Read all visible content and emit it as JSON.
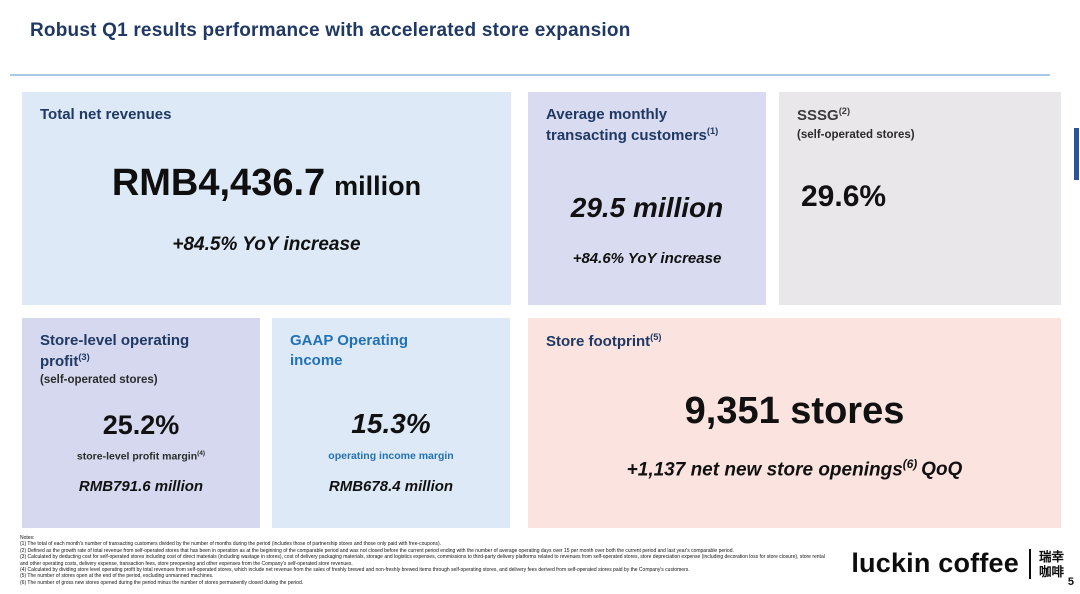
{
  "slide": {
    "title": "Robust Q1 results performance with accelerated store expansion",
    "page_number": "5"
  },
  "colors": {
    "title_navy": "#1F3864",
    "card_light_blue": "#DDE9F6",
    "card_lavender": "#D9DBF0",
    "card_gray": "#E9E7EA",
    "card_pink": "#FBE3DF",
    "accent_blue": "#2271B5"
  },
  "cards": {
    "net_revenues": {
      "heading": "Total net revenues",
      "value": "RMB4,436.7",
      "unit": "million",
      "change": "+84.5% YoY increase"
    },
    "monthly_customers": {
      "heading_line1": "Average monthly",
      "heading_line2": "transacting customers",
      "heading_sup": "(1)",
      "value": "29.5 million",
      "change": "+84.6% YoY increase"
    },
    "sssg": {
      "heading": "SSSG",
      "heading_sup": "(2)",
      "subheading": "(self-operated stores)",
      "value": "29.6%"
    },
    "store_profit": {
      "heading_line1": "Store-level operating",
      "heading_line2": "profit",
      "heading_sup": "(3)",
      "subheading": "(self-operated stores)",
      "value": "25.2%",
      "margin_label": "store-level profit margin",
      "margin_sup": "(4)",
      "amount": "RMB791.6 million"
    },
    "gaap_income": {
      "heading_line1": "GAAP Operating",
      "heading_line2": "income",
      "value": "15.3%",
      "margin_label": "operating income margin",
      "amount": "RMB678.4 million"
    },
    "store_footprint": {
      "heading": "Store footprint",
      "heading_sup": "(5)",
      "value": "9,351 stores",
      "change_prefix": "+1,137 net new store openings",
      "change_sup": "(6)",
      "change_suffix": "QoQ"
    }
  },
  "notes": {
    "label": "Notes:",
    "items": [
      "(1) The total of each month's number of transacting customers divided by the number of months during the period (includes those of partnership stores and those only paid with free-coupons).",
      "(2) Defined as the growth rate of total revenue from self-operated stores that has been in operation as at the beginning of the comparable period and was not closed before the current period ending with the number of average operating days over 15 per month over both the current period and last year's comparable period.",
      "(3) Calculated by deducting cost for self-operated stores including cost of direct materials (including wastage in stores), cost of delivery packaging materials, storage and logistics expenses, commissions to third-party delivery platforms related to revenues from self-operated stores, store depreciation expense (including decoration loss for store closure), store rental and other operating costs, delivery expense, transaction fees, store preopening and other expenses from the Company's self-operated store revenues.",
      "(4) Calculated by dividing store level operating profit by total revenues from self-operated stores, which include net revenue from the sales of freshly brewed and non-freshly brewed items through self-operating stores, and delivery fees derived from self-operated stores paid by the Company's customers.",
      "(5) The number of stores open at the end of the period, excluding unmanned machines.",
      "(6) The number of gross new stores opened during the period minus the number of stores permanently closed during the period."
    ]
  },
  "footer": {
    "brand": "luckin coffee",
    "brand_cn_line1": "瑞幸",
    "brand_cn_line2": "咖啡"
  }
}
